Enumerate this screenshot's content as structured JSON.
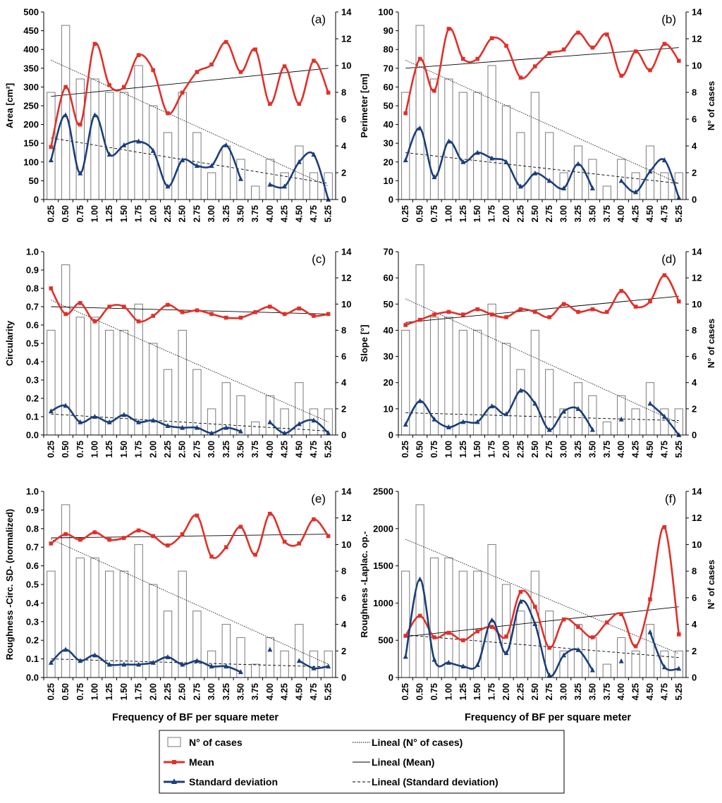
{
  "colors": {
    "mean": "#e0302a",
    "sd": "#1b3f7a",
    "bars": "#ffffff",
    "barStroke": "#7a7a7a",
    "trend": "#000000"
  },
  "chart_data": [
    {
      "type": "bar+line",
      "label": "(a)",
      "ylabel": "Area [cm²]",
      "y2label": "",
      "ylim": [
        0,
        500
      ],
      "yticks": [
        "0",
        "50",
        "100",
        "150",
        "200",
        "250",
        "300",
        "350",
        "400",
        "450",
        "500"
      ],
      "y2lim": [
        0,
        14
      ],
      "y2ticks": [
        "0",
        "2",
        "4",
        "6",
        "8",
        "10",
        "12",
        "14"
      ],
      "xlabel": "",
      "categories": [
        "0.25",
        "0.50",
        "0.75",
        "1.00",
        "1.25",
        "1.50",
        "1.75",
        "2.00",
        "2.25",
        "2.50",
        "2.75",
        "3.00",
        "3.25",
        "3.50",
        "3.75",
        "4.00",
        "4.25",
        "4.50",
        "4.75",
        "5.25"
      ],
      "cases": [
        8,
        13,
        9,
        9,
        8,
        8,
        10,
        7,
        5,
        8,
        5,
        2,
        4,
        3,
        1,
        3,
        2,
        4,
        2,
        2
      ],
      "mean": [
        140,
        300,
        200,
        415,
        305,
        300,
        385,
        345,
        230,
        285,
        340,
        360,
        420,
        340,
        400,
        255,
        355,
        255,
        370,
        285
      ],
      "sd": [
        105,
        225,
        70,
        225,
        120,
        145,
        155,
        130,
        35,
        105,
        90,
        90,
        145,
        55,
        null,
        40,
        35,
        100,
        120,
        0
      ],
      "mean_trend": [
        275,
        350
      ],
      "cases_trend": [
        10.4,
        1.0
      ],
      "sd_trend": [
        4.6,
        1.2
      ]
    },
    {
      "type": "bar+line",
      "label": "(b)",
      "ylabel": "Perimeter [cm]",
      "y2label": "N° of cases",
      "ylim": [
        0,
        100
      ],
      "yticks": [
        "0",
        "10",
        "20",
        "30",
        "40",
        "50",
        "60",
        "70",
        "80",
        "90",
        "100"
      ],
      "y2lim": [
        0,
        14
      ],
      "y2ticks": [
        "0",
        "2",
        "4",
        "6",
        "8",
        "10",
        "12",
        "14"
      ],
      "xlabel": "",
      "categories": [
        "0.25",
        "0.50",
        "0.75",
        "1.00",
        "1.25",
        "1.50",
        "1.75",
        "2.00",
        "2.25",
        "2.50",
        "2.75",
        "3.00",
        "3.25",
        "3.50",
        "3.75",
        "4.00",
        "4.25",
        "4.50",
        "4.75",
        "5.25"
      ],
      "cases": [
        8,
        13,
        9,
        9,
        8,
        8,
        10,
        7,
        5,
        8,
        5,
        2,
        4,
        3,
        1,
        3,
        2,
        4,
        2,
        2
      ],
      "mean": [
        46,
        75,
        58,
        91,
        75,
        75,
        86,
        82,
        65,
        71,
        78,
        80,
        89,
        81,
        88,
        66,
        79,
        69,
        83,
        74
      ],
      "sd": [
        21,
        38,
        12,
        31,
        20,
        25,
        22,
        20,
        7,
        14,
        10,
        6,
        19,
        6,
        null,
        10,
        4,
        15,
        21,
        1
      ],
      "mean_trend": [
        70,
        81
      ],
      "cases_trend": [
        10.4,
        1.2
      ],
      "sd_trend": [
        3.5,
        1.2
      ]
    },
    {
      "type": "bar+line",
      "label": "(c)",
      "ylabel": "Circularity",
      "y2label": "",
      "ylim": [
        0,
        1
      ],
      "yticks": [
        "0.0",
        "0.1",
        "0.2",
        "0.3",
        "0.4",
        "0.5",
        "0.6",
        "0.7",
        "0.8",
        "0.9",
        "1.0"
      ],
      "y2lim": [
        0,
        14
      ],
      "y2ticks": [
        "0",
        "2",
        "4",
        "6",
        "8",
        "10",
        "12",
        "14"
      ],
      "xlabel": "",
      "categories": [
        "0.25",
        "0.50",
        "0.75",
        "1.00",
        "1.25",
        "1.50",
        "1.75",
        "2.00",
        "2.25",
        "2.50",
        "2.75",
        "3.00",
        "3.25",
        "3.50",
        "3.75",
        "4.00",
        "4.25",
        "4.50",
        "4.75",
        "5.25"
      ],
      "cases": [
        8,
        13,
        9,
        9,
        8,
        8,
        10,
        7,
        5,
        8,
        5,
        2,
        4,
        3,
        1,
        3,
        2,
        4,
        2,
        2
      ],
      "mean": [
        0.8,
        0.66,
        0.72,
        0.62,
        0.7,
        0.7,
        0.62,
        0.65,
        0.71,
        0.67,
        0.68,
        0.66,
        0.64,
        0.64,
        0.67,
        0.7,
        0.66,
        0.69,
        0.65,
        0.66
      ],
      "sd": [
        0.13,
        0.16,
        0.07,
        0.1,
        0.07,
        0.11,
        0.07,
        0.08,
        0.05,
        0.04,
        0.04,
        0.01,
        0.04,
        0.02,
        null,
        0.07,
        0.01,
        0.06,
        0.08,
        0.01
      ],
      "mean_trend": [
        0.7,
        0.66
      ],
      "cases_trend": [
        10.3,
        1.0
      ],
      "sd_trend": [
        1.6,
        0.3
      ]
    },
    {
      "type": "bar+line",
      "label": "(d)",
      "ylabel": "Slope [°]",
      "y2label": "N° of cases",
      "ylim": [
        0,
        70
      ],
      "yticks": [
        "0",
        "10",
        "20",
        "30",
        "40",
        "50",
        "60",
        "70"
      ],
      "y2lim": [
        0,
        14
      ],
      "y2ticks": [
        "0",
        "2",
        "4",
        "6",
        "8",
        "10",
        "12",
        "14"
      ],
      "xlabel": "",
      "categories": [
        "0.25",
        "0.50",
        "0.75",
        "1.00",
        "1.25",
        "1.50",
        "1.75",
        "2.00",
        "2.25",
        "2.50",
        "2.75",
        "3.00",
        "3.25",
        "3.50",
        "3.75",
        "4.00",
        "4.25",
        "4.50",
        "4.75",
        "5.25"
      ],
      "cases": [
        8,
        13,
        9,
        9,
        8,
        8,
        10,
        7,
        5,
        8,
        5,
        2,
        4,
        3,
        1,
        3,
        2,
        4,
        2,
        2
      ],
      "mean": [
        42,
        44,
        46,
        47,
        46,
        48,
        46,
        45,
        48,
        47,
        45,
        50,
        47,
        48,
        47,
        55,
        49,
        51,
        61,
        51
      ],
      "sd": [
        4,
        13,
        6,
        3,
        5,
        5,
        11,
        8,
        17,
        12,
        2,
        9,
        10,
        2,
        null,
        6,
        null,
        12,
        7,
        0
      ],
      "mean_trend": [
        43,
        53
      ],
      "cases_trend": [
        10.4,
        0.9
      ],
      "sd_trend": [
        1.7,
        1.1
      ]
    },
    {
      "type": "bar+line",
      "label": "(e)",
      "ylabel": "Roughness -Circ. SD- (normalized)",
      "y2label": "",
      "ylim": [
        0,
        1
      ],
      "yticks": [
        "0.0",
        "0.1",
        "0.2",
        "0.3",
        "0.4",
        "0.5",
        "0.6",
        "0.7",
        "0.8",
        "0.9",
        "1.0"
      ],
      "y2lim": [
        0,
        14
      ],
      "y2ticks": [
        "0",
        "2",
        "4",
        "6",
        "8",
        "10",
        "12",
        "14"
      ],
      "xlabel": "Frequency of BF per square meter",
      "categories": [
        "0.25",
        "0.50",
        "0.75",
        "1.00",
        "1.25",
        "1.50",
        "1.75",
        "2.00",
        "2.25",
        "2.50",
        "2.75",
        "3.00",
        "3.25",
        "3.50",
        "3.75",
        "4.00",
        "4.25",
        "4.50",
        "4.75",
        "5.25"
      ],
      "cases": [
        8,
        13,
        9,
        9,
        8,
        8,
        10,
        7,
        5,
        8,
        5,
        2,
        4,
        3,
        1,
        3,
        2,
        4,
        2,
        2
      ],
      "mean": [
        0.72,
        0.77,
        0.74,
        0.78,
        0.74,
        0.75,
        0.79,
        0.76,
        0.71,
        0.77,
        0.87,
        0.65,
        0.7,
        0.81,
        0.66,
        0.88,
        0.73,
        0.72,
        0.85,
        0.76
      ],
      "sd": [
        0.08,
        0.15,
        0.09,
        0.12,
        0.07,
        0.07,
        0.07,
        0.08,
        0.11,
        0.07,
        0.09,
        0.06,
        0.06,
        0.03,
        null,
        0.15,
        null,
        0.09,
        0.05,
        0.06
      ],
      "mean_trend": [
        0.75,
        0.77
      ],
      "cases_trend": [
        10.4,
        1.0
      ],
      "sd_trend": [
        1.4,
        0.8
      ]
    },
    {
      "type": "bar+line",
      "label": "(f)",
      "ylabel": "Roughness -Laplac. op.-",
      "y2label": "N° of cases",
      "ylim": [
        0,
        2500
      ],
      "yticks": [
        "0",
        "500",
        "1000",
        "1500",
        "2000",
        "2500"
      ],
      "y2lim": [
        0,
        14
      ],
      "y2ticks": [
        "0",
        "2",
        "4",
        "6",
        "8",
        "10",
        "12",
        "14"
      ],
      "xlabel": "Frequency of BF per square meter",
      "categories": [
        "0.25",
        "0.50",
        "0.75",
        "1.00",
        "1.25",
        "1.50",
        "1.75",
        "2.00",
        "2.25",
        "2.50",
        "2.75",
        "3.00",
        "3.25",
        "3.50",
        "3.75",
        "4.00",
        "4.25",
        "4.50",
        "4.75",
        "5.25"
      ],
      "cases": [
        8,
        13,
        9,
        9,
        8,
        8,
        10,
        7,
        5,
        8,
        5,
        2,
        4,
        3,
        1,
        3,
        2,
        4,
        2,
        2
      ],
      "mean": [
        560,
        830,
        540,
        600,
        500,
        620,
        680,
        550,
        1150,
        950,
        400,
        780,
        680,
        540,
        740,
        850,
        420,
        1050,
        2020,
        580
      ],
      "sd": [
        280,
        1320,
        240,
        200,
        150,
        170,
        770,
        330,
        1020,
        720,
        30,
        300,
        370,
        100,
        null,
        220,
        null,
        610,
        140,
        120
      ],
      "mean_trend": [
        550,
        950
      ],
      "cases_trend": [
        10.4,
        1.8
      ],
      "sd_trend": [
        3.2,
        1.5
      ]
    }
  ],
  "legend": {
    "cases": "N° of cases",
    "mean": "Mean",
    "sd": "Standard deviation",
    "lin_cases": "Lineal (N° of cases)",
    "lin_mean": "Lineal (Mean)",
    "lin_sd": "Lineal (Standard deviation)"
  }
}
